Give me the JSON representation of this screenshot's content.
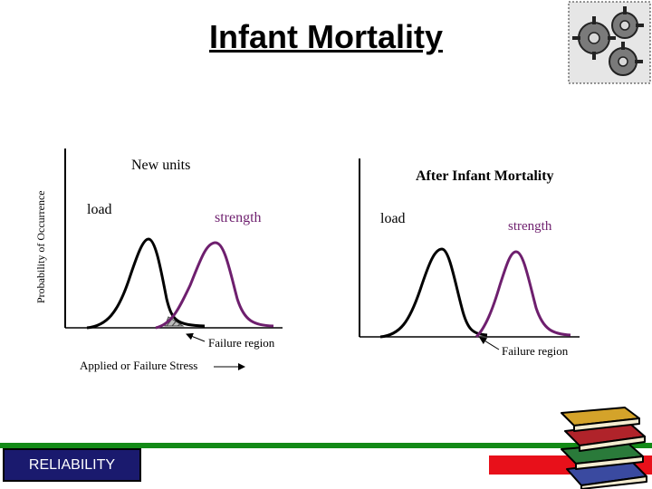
{
  "slide": {
    "title": "Infant Mortality",
    "y_axis_label": "Probability of Occurrence",
    "x_axis_label": "Applied or Failure Stress",
    "footer_label": "RELIABILITY"
  },
  "left_panel": {
    "heading": "New units",
    "load_label": "load",
    "strength_label": "strength",
    "failure_label": "Failure region"
  },
  "right_panel": {
    "heading": "After Infant Mortality",
    "load_label": "load",
    "strength_label": "strength",
    "failure_label": "Failure region"
  },
  "colors": {
    "load_curve": "#000000",
    "strength_curve": "#6e1f6e",
    "footer_bar": "#138a17",
    "accent_bar": "#e8101a",
    "reliability_box": "#1a1a6e"
  },
  "icons": {
    "top_right": "gears-icon",
    "bottom_right": "books-icon"
  }
}
